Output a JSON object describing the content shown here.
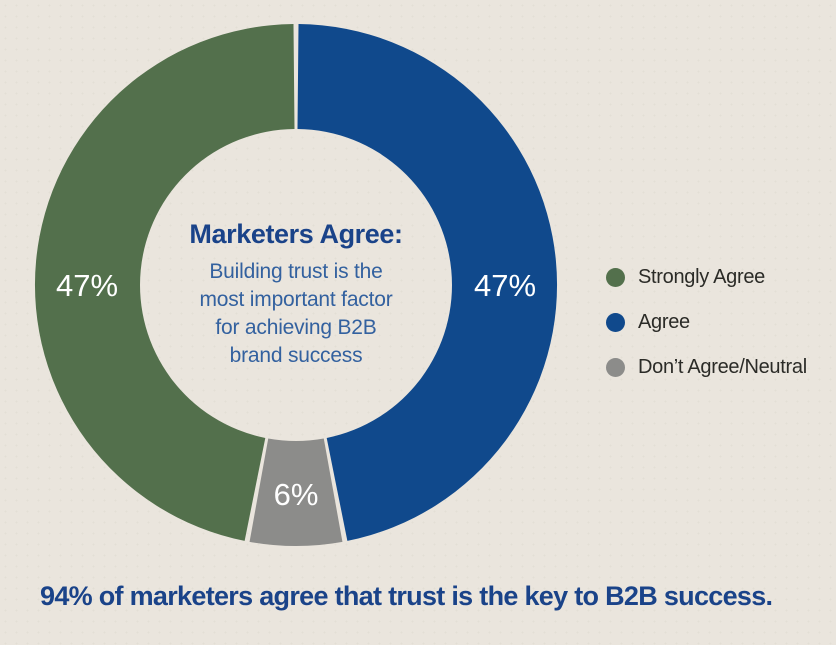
{
  "page_bg": "#EAE5DD",
  "chart_data": {
    "type": "pie",
    "subtype": "donut",
    "title": "Marketers Agree:",
    "subtitle_lines": [
      "Building trust is the",
      "most important factor",
      "for achieving B2B",
      "brand success"
    ],
    "categories": [
      "Strongly Agree",
      "Agree",
      "Don’t Agree/Neutral"
    ],
    "values": [
      47,
      47,
      6
    ],
    "unit": "%",
    "slice_labels": [
      "47%",
      "47%",
      "6%"
    ],
    "colors_list": [
      "#53704C",
      "#10498C",
      "#8C8C8A"
    ],
    "draw_order_clockwise_from_top": [
      "Agree",
      "Don’t Agree/Neutral",
      "Strongly Agree"
    ],
    "start_angle_deg": 0,
    "slice_label_color": "#FFFFFF",
    "legend_position": "right",
    "background": "#EAE5DD"
  },
  "text_colors": {
    "center_title": "#1A4389",
    "center_subtitle": "#33619F",
    "legend_text": "#2B2B27"
  },
  "headline": {
    "text": "94% of marketers agree that trust is the key to B2B success.",
    "color": "#1A4389"
  }
}
